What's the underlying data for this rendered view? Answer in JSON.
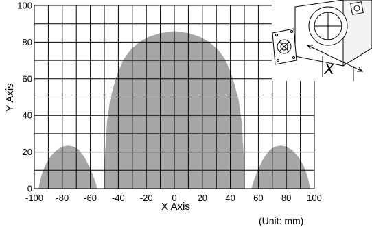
{
  "chart_data": {
    "type": "area",
    "title": "",
    "xlabel": "X Axis",
    "ylabel": "Y Axis",
    "unit_note": "(Unit: mm)",
    "xlim": [
      -100,
      100
    ],
    "ylim": [
      0,
      100
    ],
    "x_ticks": [
      "-100",
      "-80",
      "-60",
      "-40",
      "-20",
      "0",
      "20",
      "40",
      "60",
      "80",
      "100"
    ],
    "y_ticks": [
      "0",
      "20",
      "40",
      "60",
      "80",
      "100"
    ],
    "grid": true,
    "region_color": "#a6a6a6",
    "regions": [
      {
        "x": [
          -97,
          -95,
          -92,
          -88,
          -84,
          -80,
          -76,
          -72,
          -68,
          -64,
          -60,
          -57,
          -55
        ],
        "y": [
          0,
          7,
          13,
          18,
          21,
          23,
          23.5,
          23,
          21,
          17,
          11,
          5,
          0
        ]
      },
      {
        "x": [
          -50,
          -50,
          -49,
          -48,
          -46,
          -43,
          -40,
          -36,
          -31,
          -25,
          -18,
          -10,
          0,
          10,
          18,
          25,
          31,
          36,
          40,
          43,
          46,
          48,
          49,
          50,
          50
        ],
        "y": [
          0,
          12,
          25,
          37,
          48,
          57,
          64,
          71,
          76,
          80,
          83,
          85,
          86,
          85,
          83,
          80,
          76,
          71,
          64,
          57,
          48,
          37,
          25,
          12,
          0
        ]
      },
      {
        "x": [
          55,
          57,
          60,
          64,
          68,
          72,
          76,
          80,
          84,
          88,
          92,
          95,
          97
        ],
        "y": [
          0,
          5,
          11,
          17,
          21,
          23,
          23.5,
          23,
          21,
          18,
          13,
          7,
          0
        ]
      }
    ],
    "inset_label": "X"
  }
}
